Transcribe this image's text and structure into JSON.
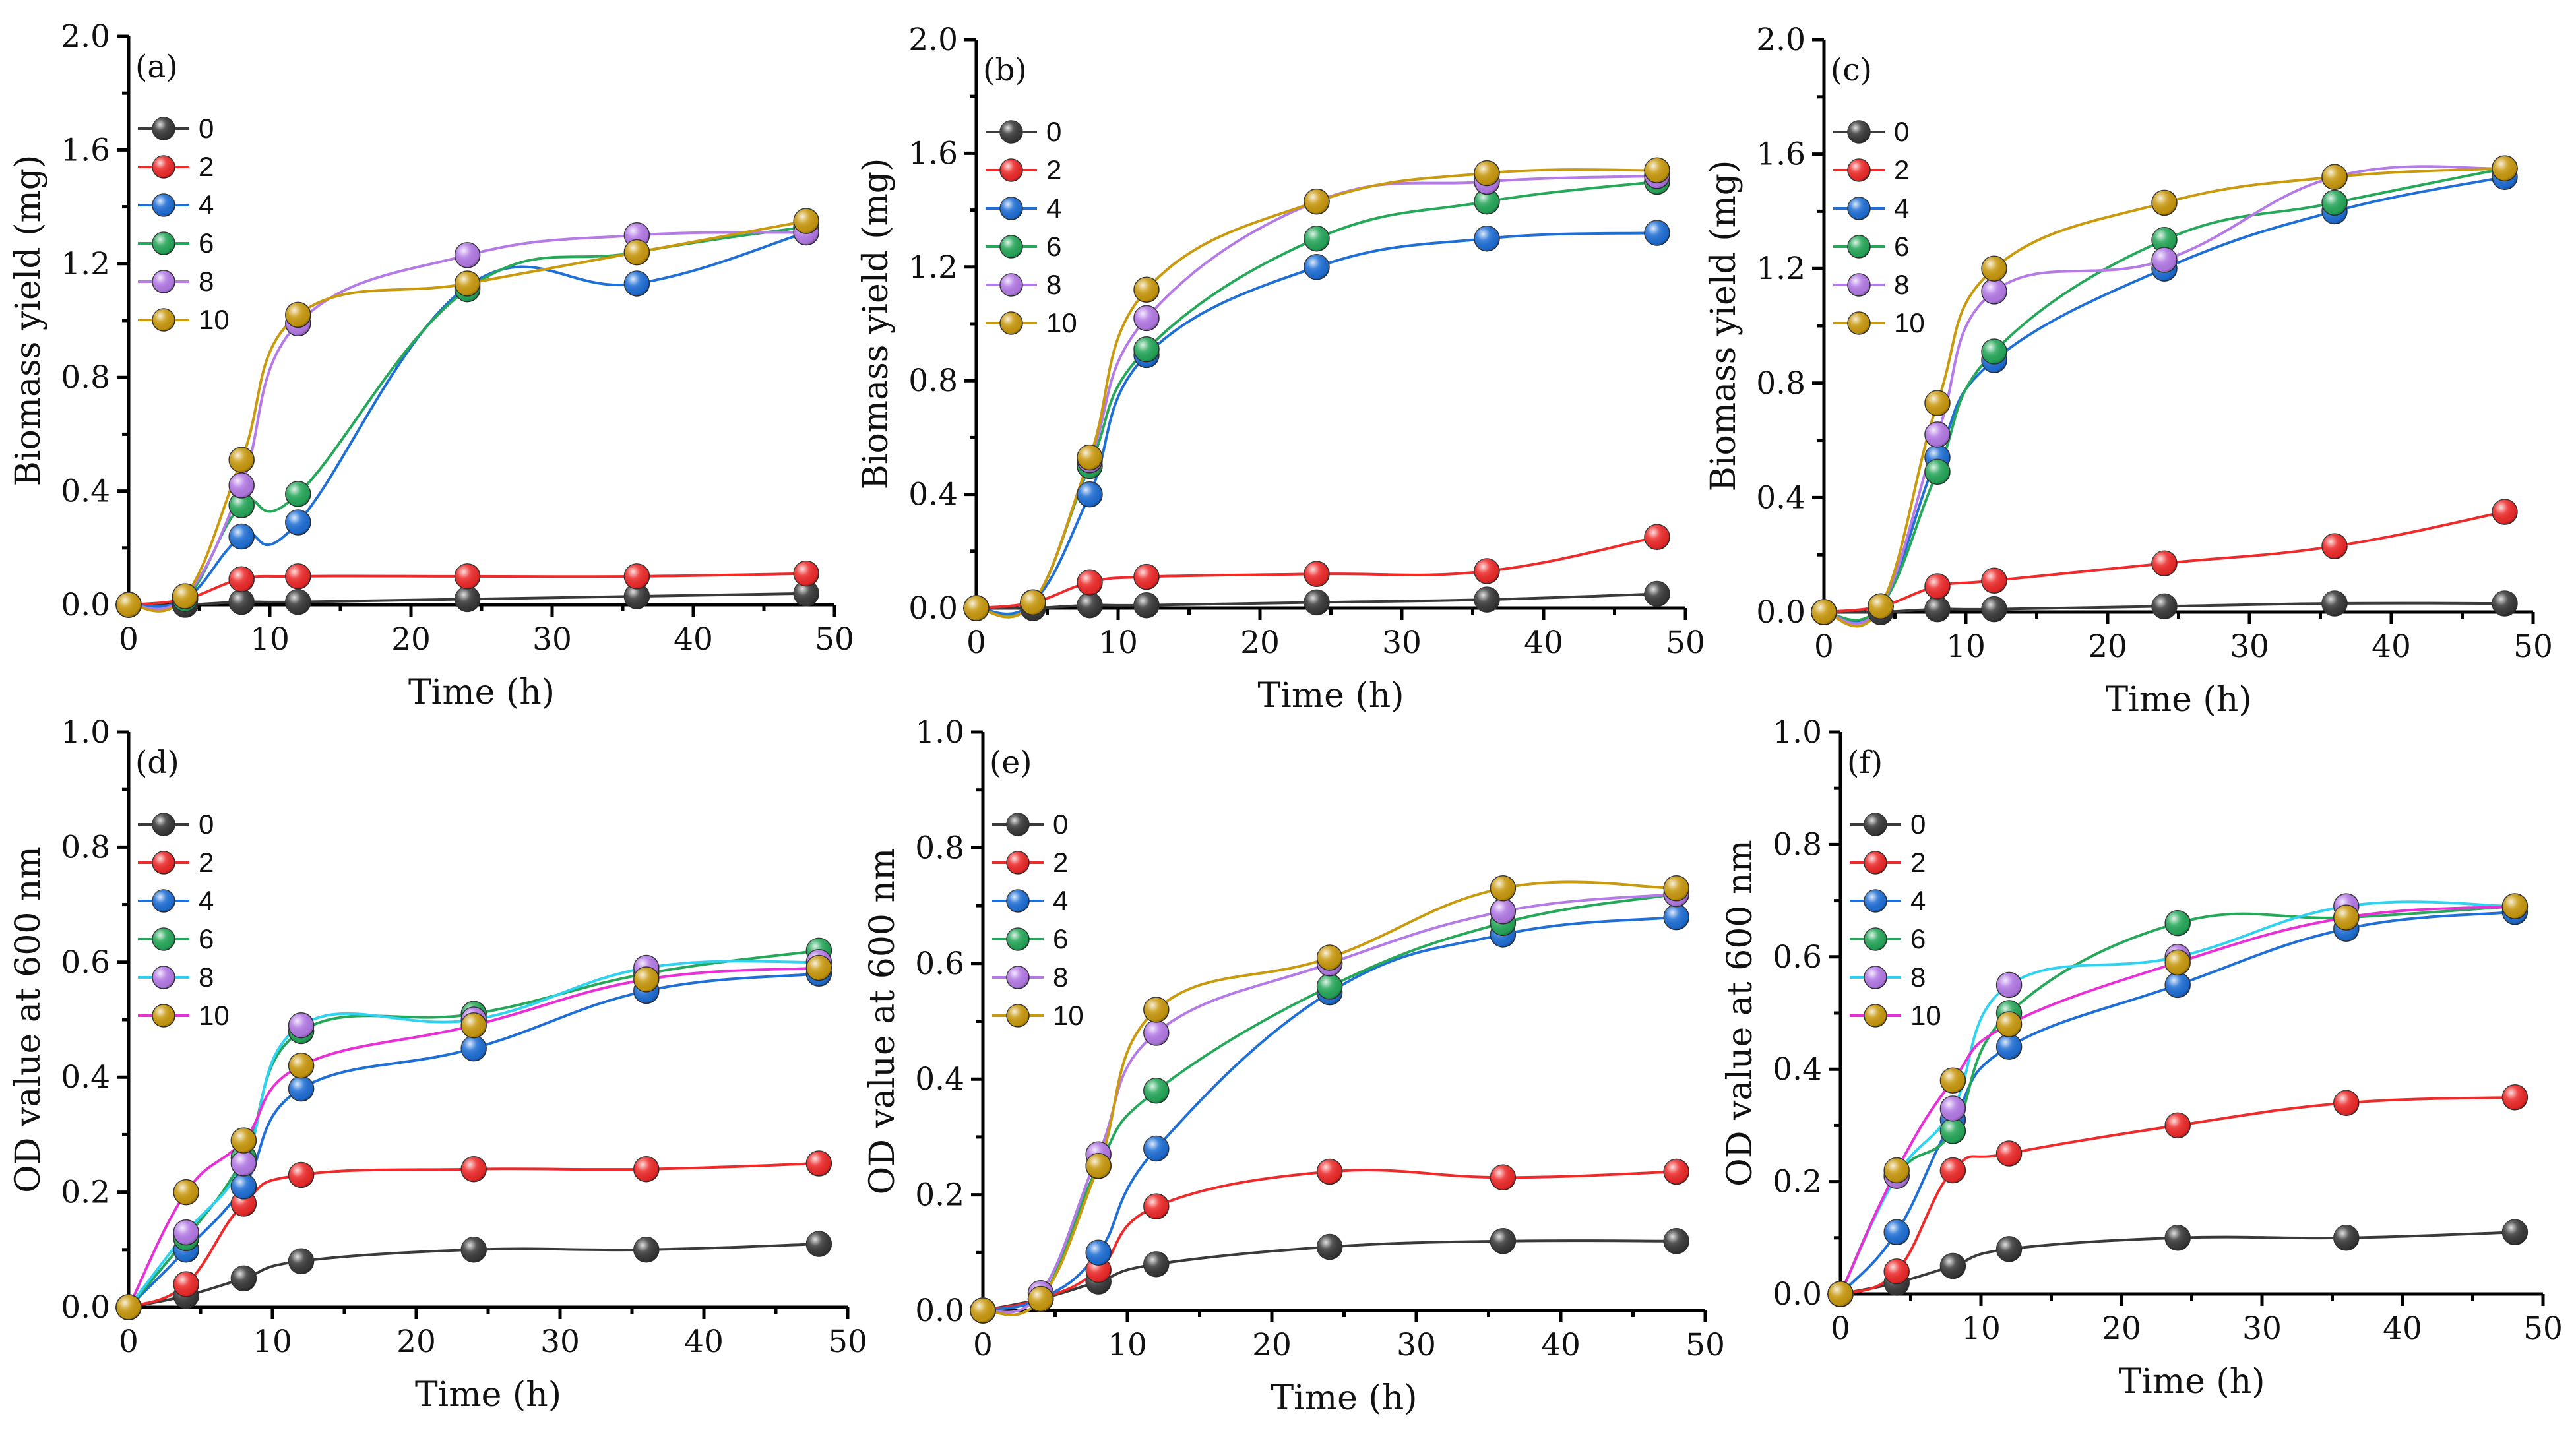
{
  "palette": {
    "0": "#3a3a3a",
    "2": "#ee2a2a",
    "4": "#1f6fd6",
    "6": "#26a85a",
    "8": "#b47ae6",
    "10": "#c9990e"
  },
  "legend_line_palette": {
    "0": "#3a3a3a",
    "2": "#ee2a2a",
    "4": "#1f6fd6",
    "6": "#26a85a",
    "8": "#2fd2f0",
    "10": "#e830d6"
  },
  "chart_data": [
    {
      "id": "a",
      "type": "scatter",
      "panel_label": "(a)",
      "xlabel": "Time (h)",
      "ylabel": "Biomass yield (mg)",
      "xlim": [
        0,
        50
      ],
      "ylim": [
        0,
        2.0
      ],
      "xticks": [
        "0",
        "10",
        "20",
        "30",
        "40",
        "50"
      ],
      "yticks": [
        "0.0",
        "0.4",
        "0.8",
        "1.2",
        "1.6",
        "2.0"
      ],
      "legend_position": "upper-left",
      "legend_line_style": "same",
      "x": [
        0,
        4,
        8,
        12,
        24,
        36,
        48
      ],
      "series": [
        {
          "name": "0",
          "values": [
            0,
            0,
            0.01,
            0.01,
            0.02,
            0.03,
            0.04
          ]
        },
        {
          "name": "2",
          "values": [
            0,
            0.02,
            0.09,
            0.1,
            0.1,
            0.1,
            0.11
          ]
        },
        {
          "name": "4",
          "values": [
            0,
            0.02,
            0.24,
            0.29,
            1.12,
            1.13,
            1.31
          ]
        },
        {
          "name": "6",
          "values": [
            0,
            0.02,
            0.35,
            0.39,
            1.11,
            1.24,
            1.33
          ]
        },
        {
          "name": "8",
          "values": [
            0,
            0.03,
            0.42,
            0.99,
            1.23,
            1.3,
            1.31
          ]
        },
        {
          "name": "10",
          "values": [
            0,
            0.03,
            0.51,
            1.02,
            1.13,
            1.24,
            1.35
          ]
        }
      ]
    },
    {
      "id": "b",
      "type": "scatter",
      "panel_label": "(b)",
      "xlabel": "Time (h)",
      "ylabel": "Biomass yield (mg)",
      "xlim": [
        0,
        50
      ],
      "ylim": [
        0,
        2.0
      ],
      "xticks": [
        "0",
        "10",
        "20",
        "30",
        "40",
        "50"
      ],
      "yticks": [
        "0.0",
        "0.4",
        "0.8",
        "1.2",
        "1.6",
        "2.0"
      ],
      "legend_position": "upper-left",
      "legend_line_style": "same",
      "x": [
        0,
        4,
        8,
        12,
        24,
        36,
        48
      ],
      "series": [
        {
          "name": "0",
          "values": [
            0,
            0,
            0.01,
            0.01,
            0.02,
            0.03,
            0.05
          ]
        },
        {
          "name": "2",
          "values": [
            0,
            0.02,
            0.09,
            0.11,
            0.12,
            0.13,
            0.25
          ]
        },
        {
          "name": "4",
          "values": [
            0,
            0.02,
            0.4,
            0.89,
            1.2,
            1.3,
            1.32
          ]
        },
        {
          "name": "6",
          "values": [
            0,
            0.02,
            0.5,
            0.91,
            1.3,
            1.43,
            1.5
          ]
        },
        {
          "name": "8",
          "values": [
            0,
            0.02,
            0.52,
            1.02,
            1.43,
            1.5,
            1.52
          ]
        },
        {
          "name": "10",
          "values": [
            0,
            0.02,
            0.53,
            1.12,
            1.43,
            1.53,
            1.54
          ]
        }
      ]
    },
    {
      "id": "c",
      "type": "scatter",
      "panel_label": "(c)",
      "xlabel": "Time (h)",
      "ylabel": "Biomass yield (mg)",
      "xlim": [
        0,
        50
      ],
      "ylim": [
        0,
        2.0
      ],
      "xticks": [
        "0",
        "10",
        "20",
        "30",
        "40",
        "50"
      ],
      "yticks": [
        "0.0",
        "0.4",
        "0.8",
        "1.2",
        "1.6",
        "2.0"
      ],
      "legend_position": "upper-left",
      "legend_line_style": "same",
      "x": [
        0,
        4,
        8,
        12,
        24,
        36,
        48
      ],
      "series": [
        {
          "name": "0",
          "values": [
            0,
            0,
            0.01,
            0.01,
            0.02,
            0.03,
            0.03
          ]
        },
        {
          "name": "2",
          "values": [
            0,
            0.02,
            0.09,
            0.11,
            0.17,
            0.23,
            0.35
          ]
        },
        {
          "name": "4",
          "values": [
            0,
            0.02,
            0.54,
            0.88,
            1.2,
            1.4,
            1.52
          ]
        },
        {
          "name": "6",
          "values": [
            0,
            0.02,
            0.49,
            0.91,
            1.3,
            1.43,
            1.55
          ]
        },
        {
          "name": "8",
          "values": [
            0,
            0.02,
            0.62,
            1.12,
            1.23,
            1.52,
            1.55
          ]
        },
        {
          "name": "10",
          "values": [
            0,
            0.02,
            0.73,
            1.2,
            1.43,
            1.52,
            1.55
          ]
        }
      ]
    },
    {
      "id": "d",
      "type": "scatter",
      "panel_label": "(d)",
      "xlabel": "Time (h)",
      "ylabel": "OD value at 600 nm",
      "xlim": [
        0,
        50
      ],
      "ylim": [
        0,
        1.0
      ],
      "xticks": [
        "0",
        "10",
        "20",
        "30",
        "40",
        "50"
      ],
      "yticks": [
        "0.0",
        "0.2",
        "0.4",
        "0.6",
        "0.8",
        "1.0"
      ],
      "legend_position": "upper-left",
      "legend_line_style": "alt",
      "x": [
        0,
        4,
        8,
        12,
        24,
        36,
        48
      ],
      "series": [
        {
          "name": "0",
          "values": [
            0,
            0.02,
            0.05,
            0.08,
            0.1,
            0.1,
            0.11
          ]
        },
        {
          "name": "2",
          "values": [
            0,
            0.04,
            0.18,
            0.23,
            0.24,
            0.24,
            0.25
          ]
        },
        {
          "name": "4",
          "values": [
            0,
            0.1,
            0.21,
            0.38,
            0.45,
            0.55,
            0.58
          ]
        },
        {
          "name": "6",
          "values": [
            0,
            0.12,
            0.26,
            0.48,
            0.51,
            0.58,
            0.62
          ]
        },
        {
          "name": "8",
          "values": [
            0,
            0.13,
            0.25,
            0.49,
            0.5,
            0.59,
            0.6
          ]
        },
        {
          "name": "10",
          "values": [
            0,
            0.2,
            0.29,
            0.42,
            0.49,
            0.57,
            0.59
          ]
        }
      ]
    },
    {
      "id": "e",
      "type": "scatter",
      "panel_label": "(e)",
      "xlabel": "Time (h)",
      "ylabel": "OD value at 600 nm",
      "xlim": [
        0,
        50
      ],
      "ylim": [
        0,
        1.0
      ],
      "xticks": [
        "0",
        "10",
        "20",
        "30",
        "40",
        "50"
      ],
      "yticks": [
        "0.0",
        "0.2",
        "0.4",
        "0.6",
        "0.8",
        "1.0"
      ],
      "legend_position": "upper-left",
      "legend_line_style": "same",
      "x": [
        0,
        4,
        8,
        12,
        24,
        36,
        48
      ],
      "series": [
        {
          "name": "0",
          "values": [
            0,
            0.02,
            0.05,
            0.08,
            0.11,
            0.12,
            0.12
          ]
        },
        {
          "name": "2",
          "values": [
            0,
            0.02,
            0.07,
            0.18,
            0.24,
            0.23,
            0.24
          ]
        },
        {
          "name": "4",
          "values": [
            0,
            0.02,
            0.1,
            0.28,
            0.55,
            0.65,
            0.68
          ]
        },
        {
          "name": "6",
          "values": [
            0,
            0.02,
            0.25,
            0.38,
            0.56,
            0.67,
            0.72
          ]
        },
        {
          "name": "8",
          "values": [
            0,
            0.03,
            0.27,
            0.48,
            0.6,
            0.69,
            0.72
          ]
        },
        {
          "name": "10",
          "values": [
            0,
            0.02,
            0.25,
            0.52,
            0.61,
            0.73,
            0.73
          ]
        }
      ]
    },
    {
      "id": "f",
      "type": "scatter",
      "panel_label": "(f)",
      "xlabel": "Time (h)",
      "ylabel": "OD value at 600 nm",
      "xlim": [
        0,
        50
      ],
      "ylim": [
        0,
        1.0
      ],
      "xticks": [
        "0",
        "10",
        "20",
        "30",
        "40",
        "50"
      ],
      "yticks": [
        "0.0",
        "0.2",
        "0.4",
        "0.6",
        "0.8",
        "1.0"
      ],
      "legend_position": "upper-left",
      "legend_line_style": "alt",
      "x": [
        0,
        4,
        8,
        12,
        24,
        36,
        48
      ],
      "series": [
        {
          "name": "0",
          "values": [
            0,
            0.02,
            0.05,
            0.08,
            0.1,
            0.1,
            0.11
          ]
        },
        {
          "name": "2",
          "values": [
            0,
            0.04,
            0.22,
            0.25,
            0.3,
            0.34,
            0.35
          ]
        },
        {
          "name": "4",
          "values": [
            0,
            0.11,
            0.31,
            0.44,
            0.55,
            0.65,
            0.68
          ]
        },
        {
          "name": "6",
          "values": [
            0,
            0.21,
            0.29,
            0.5,
            0.66,
            0.67,
            0.69
          ]
        },
        {
          "name": "8",
          "values": [
            0,
            0.21,
            0.33,
            0.55,
            0.6,
            0.69,
            0.69
          ]
        },
        {
          "name": "10",
          "values": [
            0,
            0.22,
            0.38,
            0.48,
            0.59,
            0.67,
            0.69
          ]
        }
      ]
    }
  ]
}
